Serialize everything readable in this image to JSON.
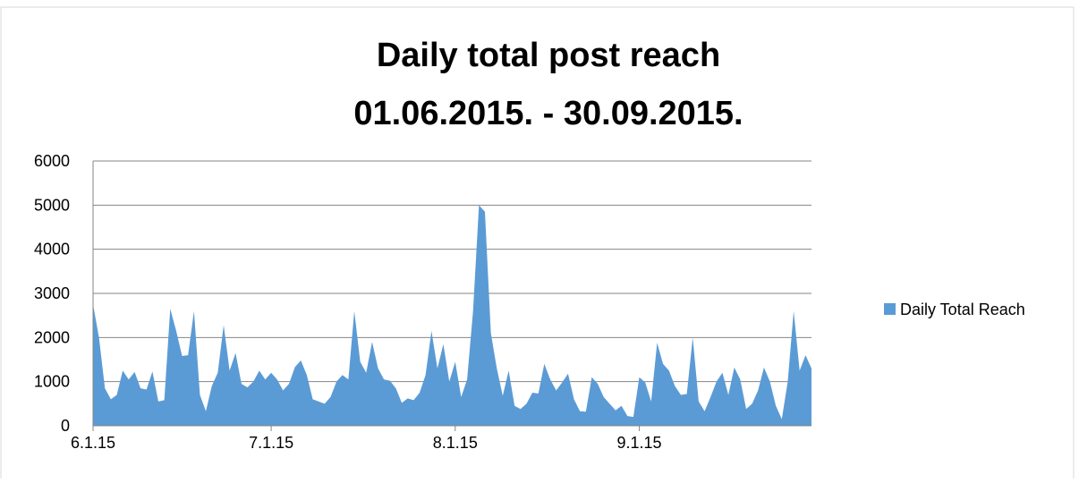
{
  "chart_data": {
    "type": "area",
    "title": "Daily  total post reach",
    "subtitle": "01.06.2015. - 30.09.2015.",
    "categories": [
      "6.1.15",
      null,
      null,
      null,
      null,
      null,
      null,
      null,
      null,
      null,
      null,
      null,
      null,
      null,
      null,
      null,
      null,
      null,
      null,
      null,
      null,
      null,
      null,
      null,
      null,
      null,
      null,
      null,
      null,
      null,
      "7.1.15",
      null,
      null,
      null,
      null,
      null,
      null,
      null,
      null,
      null,
      null,
      null,
      null,
      null,
      null,
      null,
      null,
      null,
      null,
      null,
      null,
      null,
      null,
      null,
      null,
      null,
      null,
      null,
      null,
      null,
      null,
      "8.1.15",
      null,
      null,
      null,
      null,
      null,
      null,
      null,
      null,
      null,
      null,
      null,
      null,
      null,
      null,
      null,
      null,
      null,
      null,
      null,
      null,
      null,
      null,
      null,
      null,
      null,
      null,
      null,
      null,
      null,
      null,
      "9.1.15",
      null,
      null,
      null,
      null,
      null,
      null,
      null,
      null,
      null,
      null,
      null,
      null,
      null,
      null,
      null,
      null,
      null,
      null,
      null,
      null,
      null,
      null,
      null,
      null,
      null,
      null,
      null,
      null,
      null
    ],
    "series": [
      {
        "name": "Daily Total Reach",
        "color": "#5b9bd5",
        "values": [
          2750,
          2000,
          850,
          600,
          700,
          1250,
          1050,
          1220,
          850,
          820,
          1230,
          550,
          580,
          2650,
          2150,
          1580,
          1600,
          2600,
          700,
          330,
          900,
          1200,
          2280,
          1250,
          1650,
          950,
          870,
          1000,
          1250,
          1050,
          1200,
          1050,
          800,
          950,
          1330,
          1480,
          1150,
          600,
          550,
          500,
          650,
          1000,
          1150,
          1050,
          2600,
          1450,
          1200,
          1900,
          1300,
          1050,
          1020,
          850,
          520,
          620,
          580,
          750,
          1150,
          2150,
          1300,
          1850,
          1000,
          1450,
          650,
          1050,
          2600,
          5000,
          4850,
          2100,
          1300,
          680,
          1250,
          450,
          380,
          500,
          750,
          730,
          1400,
          1050,
          800,
          980,
          1180,
          600,
          330,
          320,
          1100,
          950,
          650,
          500,
          350,
          450,
          220,
          200,
          1100,
          980,
          550,
          1880,
          1400,
          1250,
          900,
          700,
          720,
          2000,
          550,
          330,
          650,
          1000,
          1200,
          700,
          1320,
          1050,
          380,
          500,
          800,
          1320,
          1000,
          450,
          150,
          1000,
          2600,
          1250,
          1600,
          1300
        ]
      }
    ],
    "ylim": [
      0,
      6000
    ],
    "yticks": [
      0,
      1000,
      2000,
      3000,
      4000,
      5000,
      6000
    ],
    "grid": true,
    "legend": "right"
  }
}
